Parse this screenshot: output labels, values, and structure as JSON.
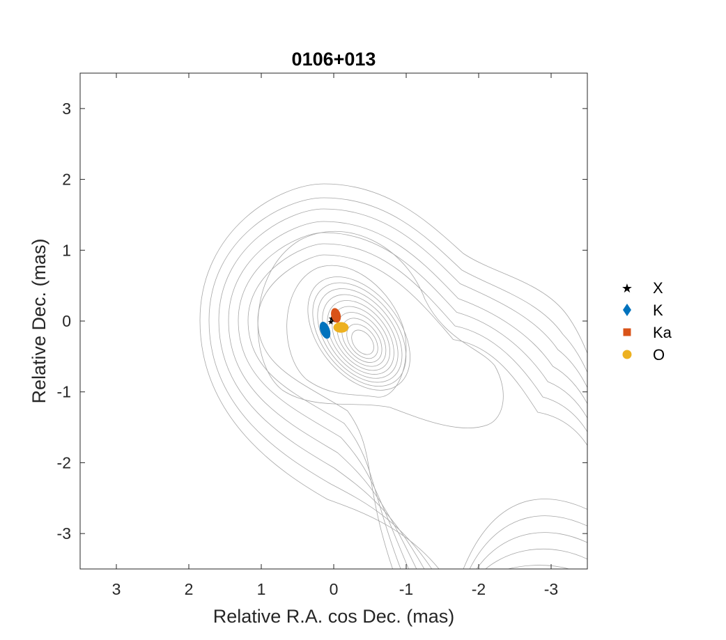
{
  "chart_data": {
    "type": "scatter",
    "title": "0106+013",
    "xlabel": "Relative R.A. cos Dec. (mas)",
    "ylabel": "Relative Dec. (mas)",
    "xlim": [
      3.5,
      -3.5
    ],
    "ylim": [
      -3.5,
      3.5
    ],
    "xticks": [
      3,
      2,
      1,
      0,
      -1,
      -2,
      -3
    ],
    "xtick_labels": [
      "3",
      "2",
      "1",
      "0",
      "-1",
      "-2",
      "-3"
    ],
    "yticks": [
      3,
      2,
      1,
      0,
      -1,
      -2,
      -3
    ],
    "ytick_labels": [
      "3",
      "2",
      "1",
      "0",
      "-1",
      "-2",
      "-3"
    ],
    "x_reversed": true,
    "grid": false,
    "legend_position": "right",
    "contours": {
      "color": "#a6a6a6",
      "core_center": [
        -0.4,
        -0.3
      ],
      "core_levels": 10,
      "jet_direction": "south-west"
    },
    "series": [
      {
        "name": "X",
        "marker": "star",
        "color": "#000000",
        "points": [
          {
            "x": 0.01,
            "y": 0.02
          },
          {
            "x": 0.04,
            "y": -0.01
          },
          {
            "x": 0.03,
            "y": 0.04
          }
        ]
      },
      {
        "name": "K",
        "marker": "diamond",
        "color": "#0072BD",
        "ellipse": {
          "cx": 0.12,
          "cy": -0.13,
          "rx": 0.06,
          "ry": 0.12,
          "angle_deg": -20
        }
      },
      {
        "name": "Ka",
        "marker": "square",
        "color": "#D95319",
        "ellipse": {
          "cx": -0.03,
          "cy": 0.08,
          "rx": 0.06,
          "ry": 0.1,
          "angle_deg": -15
        }
      },
      {
        "name": "O",
        "marker": "circle",
        "color": "#EDB120",
        "ellipse": {
          "cx": -0.1,
          "cy": -0.09,
          "rx": 0.1,
          "ry": 0.07,
          "angle_deg": 0
        }
      }
    ]
  }
}
